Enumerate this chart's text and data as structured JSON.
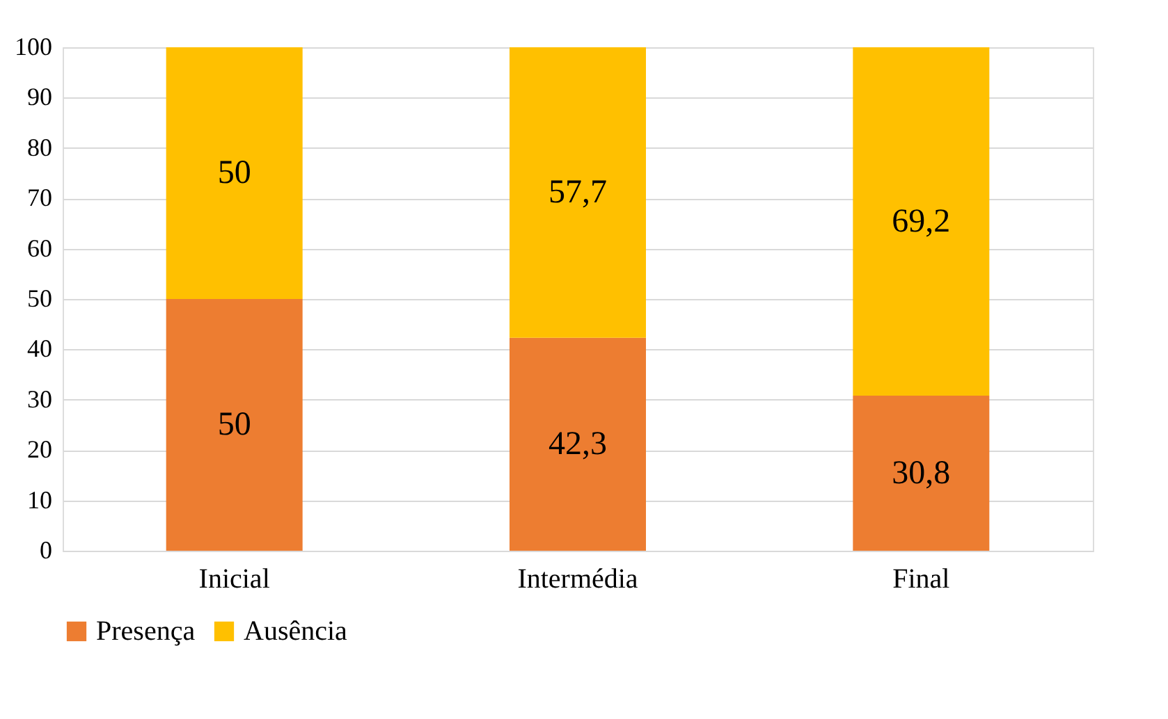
{
  "chart_data": {
    "type": "bar",
    "stacked": true,
    "categories": [
      "Inicial",
      "Intermédia",
      "Final"
    ],
    "series": [
      {
        "name": "Presença",
        "color": "#ed7d31",
        "values": [
          50,
          42.3,
          30.8
        ],
        "value_labels": [
          "50",
          "42,3",
          "30,8"
        ]
      },
      {
        "name": "Ausência",
        "color": "#ffc000",
        "values": [
          50,
          57.7,
          69.2
        ],
        "value_labels": [
          "50",
          "57,7",
          "69,2"
        ]
      }
    ],
    "ylim": [
      0,
      100
    ],
    "yticks": [
      0,
      10,
      20,
      30,
      40,
      50,
      60,
      70,
      80,
      90,
      100
    ],
    "grid": "y",
    "legend": "bottom"
  }
}
